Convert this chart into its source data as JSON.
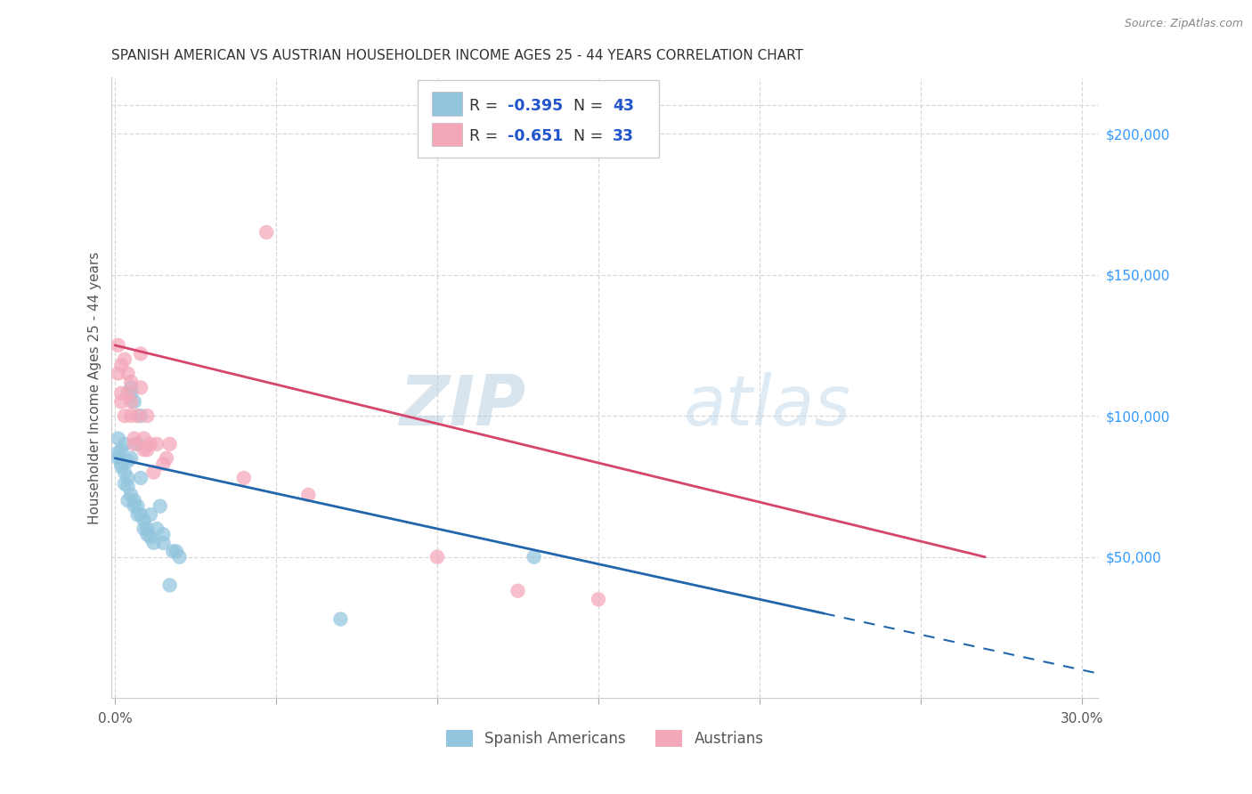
{
  "title": "SPANISH AMERICAN VS AUSTRIAN HOUSEHOLDER INCOME AGES 25 - 44 YEARS CORRELATION CHART",
  "source": "Source: ZipAtlas.com",
  "ylabel": "Householder Income Ages 25 - 44 years",
  "xlim": [
    -0.001,
    0.305
  ],
  "ylim": [
    0,
    220000
  ],
  "xticks": [
    0.0,
    0.05,
    0.1,
    0.15,
    0.2,
    0.25,
    0.3
  ],
  "xticklabels": [
    "0.0%",
    "",
    "",
    "",
    "",
    "",
    "30.0%"
  ],
  "ytick_right_labels": [
    "$200,000",
    "$150,000",
    "$100,000",
    "$50,000"
  ],
  "ytick_right_values": [
    200000,
    150000,
    100000,
    50000
  ],
  "watermark_zip": "ZIP",
  "watermark_atlas": "atlas",
  "blue_color": "#92c5de",
  "pink_color": "#f4a7b9",
  "blue_line_color": "#2166ac",
  "pink_line_color": "#d6456b",
  "blue_scatter": [
    [
      0.001,
      87000
    ],
    [
      0.001,
      85000
    ],
    [
      0.001,
      92000
    ],
    [
      0.002,
      88000
    ],
    [
      0.002,
      83000
    ],
    [
      0.002,
      82000
    ],
    [
      0.003,
      76000
    ],
    [
      0.003,
      80000
    ],
    [
      0.003,
      90000
    ],
    [
      0.004,
      78000
    ],
    [
      0.004,
      84000
    ],
    [
      0.004,
      75000
    ],
    [
      0.004,
      70000
    ],
    [
      0.005,
      72000
    ],
    [
      0.005,
      85000
    ],
    [
      0.005,
      110000
    ],
    [
      0.005,
      108000
    ],
    [
      0.006,
      105000
    ],
    [
      0.006,
      68000
    ],
    [
      0.006,
      70000
    ],
    [
      0.007,
      65000
    ],
    [
      0.007,
      68000
    ],
    [
      0.007,
      90000
    ],
    [
      0.008,
      65000
    ],
    [
      0.008,
      100000
    ],
    [
      0.008,
      78000
    ],
    [
      0.009,
      63000
    ],
    [
      0.009,
      60000
    ],
    [
      0.01,
      60000
    ],
    [
      0.01,
      58000
    ],
    [
      0.011,
      57000
    ],
    [
      0.011,
      65000
    ],
    [
      0.012,
      55000
    ],
    [
      0.013,
      60000
    ],
    [
      0.014,
      68000
    ],
    [
      0.015,
      58000
    ],
    [
      0.015,
      55000
    ],
    [
      0.017,
      40000
    ],
    [
      0.018,
      52000
    ],
    [
      0.019,
      52000
    ],
    [
      0.02,
      50000
    ],
    [
      0.13,
      50000
    ],
    [
      0.07,
      28000
    ]
  ],
  "pink_scatter": [
    [
      0.001,
      115000
    ],
    [
      0.001,
      125000
    ],
    [
      0.002,
      118000
    ],
    [
      0.002,
      108000
    ],
    [
      0.002,
      105000
    ],
    [
      0.003,
      120000
    ],
    [
      0.003,
      100000
    ],
    [
      0.004,
      115000
    ],
    [
      0.004,
      108000
    ],
    [
      0.005,
      105000
    ],
    [
      0.005,
      112000
    ],
    [
      0.005,
      100000
    ],
    [
      0.006,
      90000
    ],
    [
      0.006,
      92000
    ],
    [
      0.007,
      100000
    ],
    [
      0.008,
      122000
    ],
    [
      0.008,
      110000
    ],
    [
      0.009,
      92000
    ],
    [
      0.009,
      88000
    ],
    [
      0.01,
      100000
    ],
    [
      0.01,
      88000
    ],
    [
      0.011,
      90000
    ],
    [
      0.012,
      80000
    ],
    [
      0.013,
      90000
    ],
    [
      0.015,
      83000
    ],
    [
      0.016,
      85000
    ],
    [
      0.017,
      90000
    ],
    [
      0.04,
      78000
    ],
    [
      0.06,
      72000
    ],
    [
      0.1,
      50000
    ],
    [
      0.047,
      165000
    ],
    [
      0.125,
      38000
    ],
    [
      0.15,
      35000
    ]
  ],
  "grid_color": "#d8d8d8",
  "bg_color": "#ffffff"
}
